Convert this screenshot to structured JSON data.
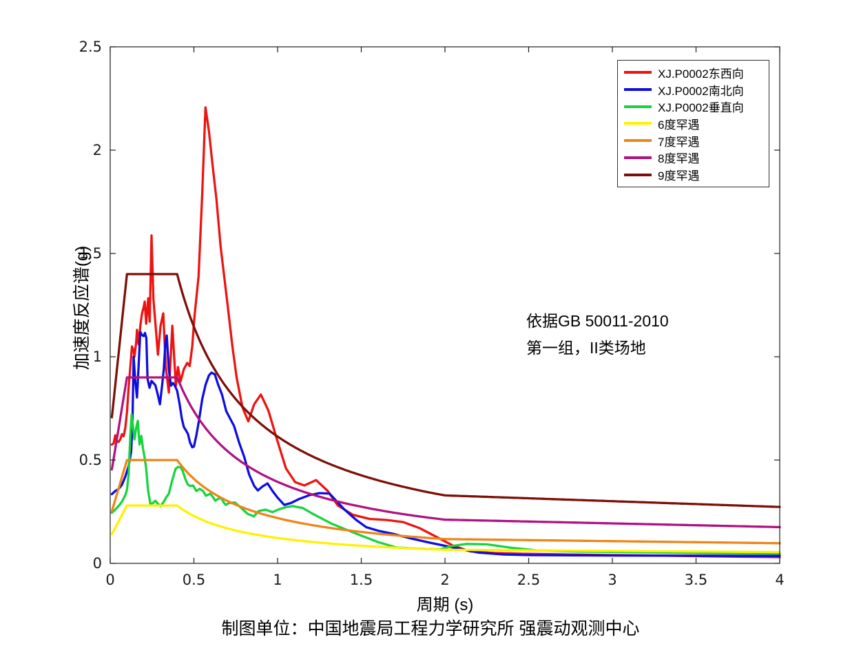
{
  "chart_data": {
    "type": "line",
    "title": "",
    "xlabel": "周期 (s)",
    "ylabel": "加速度反应谱(g)",
    "xlim": [
      0,
      4
    ],
    "ylim": [
      0,
      2.5
    ],
    "grid": false,
    "legend_position": "top-right",
    "axis_color": "#1a1a1a",
    "tick_label_color": "#1a1a1a",
    "x_ticks": {
      "values": [
        0,
        0.5,
        1,
        1.5,
        2,
        2.5,
        3,
        3.5,
        4
      ],
      "labels": [
        "0",
        "0.5",
        "1",
        "1.5",
        "2",
        "2.5",
        "3",
        "3.5",
        "4"
      ]
    },
    "y_ticks": {
      "values": [
        0,
        0.5,
        1,
        1.5,
        2,
        2.5
      ],
      "labels": [
        "0",
        "0.5",
        "1",
        "1.5",
        "2",
        "2.5"
      ]
    },
    "recorded_series": [
      {
        "name": "XJ.P0002东西向",
        "color": "#ed1310",
        "points": [
          [
            0.01,
            0.575
          ],
          [
            0.02,
            0.58
          ],
          [
            0.03,
            0.62
          ],
          [
            0.04,
            0.59
          ],
          [
            0.05,
            0.588
          ],
          [
            0.06,
            0.6
          ],
          [
            0.07,
            0.625
          ],
          [
            0.08,
            0.615
          ],
          [
            0.09,
            0.655
          ],
          [
            0.1,
            0.73
          ],
          [
            0.11,
            0.85
          ],
          [
            0.12,
            0.95
          ],
          [
            0.13,
            1.05
          ],
          [
            0.14,
            1.03
          ],
          [
            0.145,
            1.0
          ],
          [
            0.155,
            1.07
          ],
          [
            0.16,
            1.13
          ],
          [
            0.17,
            1.06
          ],
          [
            0.18,
            1.15
          ],
          [
            0.19,
            1.21
          ],
          [
            0.2,
            1.24
          ],
          [
            0.206,
            1.267
          ],
          [
            0.215,
            1.16
          ],
          [
            0.227,
            1.283
          ],
          [
            0.236,
            1.17
          ],
          [
            0.247,
            1.587
          ],
          [
            0.258,
            1.28
          ],
          [
            0.268,
            1.183
          ],
          [
            0.285,
            1.01
          ],
          [
            0.301,
            1.15
          ],
          [
            0.317,
            1.21
          ],
          [
            0.332,
            0.95
          ],
          [
            0.35,
            0.827
          ],
          [
            0.371,
            1.15
          ],
          [
            0.392,
            0.86
          ],
          [
            0.405,
            0.95
          ],
          [
            0.42,
            0.88
          ],
          [
            0.44,
            0.94
          ],
          [
            0.46,
            0.97
          ],
          [
            0.475,
            0.955
          ],
          [
            0.49,
            1.05
          ],
          [
            0.503,
            1.19
          ],
          [
            0.528,
            1.39
          ],
          [
            0.55,
            1.79
          ],
          [
            0.569,
            2.207
          ],
          [
            0.59,
            2.09
          ],
          [
            0.61,
            1.94
          ],
          [
            0.635,
            1.76
          ],
          [
            0.66,
            1.53
          ],
          [
            0.7,
            1.26
          ],
          [
            0.73,
            1.05
          ],
          [
            0.755,
            0.9
          ],
          [
            0.79,
            0.755
          ],
          [
            0.825,
            0.687
          ],
          [
            0.86,
            0.77
          ],
          [
            0.9,
            0.817
          ],
          [
            0.945,
            0.74
          ],
          [
            1.0,
            0.59
          ],
          [
            1.05,
            0.46
          ],
          [
            1.105,
            0.393
          ],
          [
            1.16,
            0.377
          ],
          [
            1.23,
            0.403
          ],
          [
            1.3,
            0.35
          ],
          [
            1.36,
            0.28
          ],
          [
            1.45,
            0.235
          ],
          [
            1.55,
            0.215
          ],
          [
            1.65,
            0.21
          ],
          [
            1.75,
            0.2
          ],
          [
            1.85,
            0.17
          ],
          [
            1.95,
            0.128
          ],
          [
            2.05,
            0.085
          ],
          [
            2.15,
            0.058
          ],
          [
            2.3,
            0.05
          ],
          [
            2.5,
            0.046
          ],
          [
            2.75,
            0.043
          ],
          [
            3.0,
            0.04
          ],
          [
            3.25,
            0.038
          ],
          [
            3.5,
            0.035
          ],
          [
            3.75,
            0.032
          ],
          [
            4.0,
            0.03
          ]
        ]
      },
      {
        "name": "XJ.P0002南北向",
        "color": "#0d0de0",
        "points": [
          [
            0.01,
            0.335
          ],
          [
            0.03,
            0.35
          ],
          [
            0.05,
            0.36
          ],
          [
            0.07,
            0.38
          ],
          [
            0.09,
            0.42
          ],
          [
            0.11,
            0.47
          ],
          [
            0.125,
            0.54
          ],
          [
            0.133,
            0.68
          ],
          [
            0.14,
            1.0
          ],
          [
            0.15,
            0.88
          ],
          [
            0.16,
            0.803
          ],
          [
            0.17,
            0.96
          ],
          [
            0.18,
            1.12
          ],
          [
            0.19,
            1.105
          ],
          [
            0.2,
            1.1
          ],
          [
            0.208,
            1.115
          ],
          [
            0.216,
            1.09
          ],
          [
            0.223,
            0.893
          ],
          [
            0.235,
            0.85
          ],
          [
            0.247,
            0.883
          ],
          [
            0.258,
            0.873
          ],
          [
            0.27,
            0.862
          ],
          [
            0.283,
            0.82
          ],
          [
            0.297,
            0.77
          ],
          [
            0.31,
            0.86
          ],
          [
            0.32,
            0.94
          ],
          [
            0.33,
            1.07
          ],
          [
            0.338,
            1.103
          ],
          [
            0.35,
            0.94
          ],
          [
            0.363,
            0.86
          ],
          [
            0.375,
            0.873
          ],
          [
            0.385,
            0.862
          ],
          [
            0.4,
            0.835
          ],
          [
            0.415,
            0.77
          ],
          [
            0.428,
            0.7
          ],
          [
            0.44,
            0.66
          ],
          [
            0.455,
            0.64
          ],
          [
            0.465,
            0.625
          ],
          [
            0.477,
            0.585
          ],
          [
            0.49,
            0.562
          ],
          [
            0.5,
            0.565
          ],
          [
            0.515,
            0.62
          ],
          [
            0.53,
            0.69
          ],
          [
            0.55,
            0.795
          ],
          [
            0.57,
            0.865
          ],
          [
            0.59,
            0.91
          ],
          [
            0.605,
            0.923
          ],
          [
            0.625,
            0.915
          ],
          [
            0.645,
            0.865
          ],
          [
            0.668,
            0.817
          ],
          [
            0.693,
            0.737
          ],
          [
            0.72,
            0.695
          ],
          [
            0.74,
            0.665
          ],
          [
            0.77,
            0.585
          ],
          [
            0.8,
            0.517
          ],
          [
            0.83,
            0.43
          ],
          [
            0.86,
            0.375
          ],
          [
            0.882,
            0.353
          ],
          [
            0.91,
            0.372
          ],
          [
            0.94,
            0.387
          ],
          [
            0.97,
            0.35
          ],
          [
            1.0,
            0.318
          ],
          [
            1.04,
            0.283
          ],
          [
            1.08,
            0.292
          ],
          [
            1.13,
            0.312
          ],
          [
            1.19,
            0.33
          ],
          [
            1.25,
            0.34
          ],
          [
            1.31,
            0.338
          ],
          [
            1.4,
            0.26
          ],
          [
            1.47,
            0.21
          ],
          [
            1.53,
            0.175
          ],
          [
            1.6,
            0.158
          ],
          [
            1.69,
            0.143
          ],
          [
            1.8,
            0.12
          ],
          [
            1.91,
            0.1
          ],
          [
            2.0,
            0.085
          ],
          [
            2.1,
            0.068
          ],
          [
            2.2,
            0.052
          ],
          [
            2.35,
            0.043
          ],
          [
            2.5,
            0.04
          ],
          [
            2.75,
            0.039
          ],
          [
            3.0,
            0.038
          ],
          [
            3.5,
            0.037
          ],
          [
            4.0,
            0.036
          ]
        ]
      },
      {
        "name": "XJ.P0002垂直向",
        "color": "#17d43c",
        "points": [
          [
            0.01,
            0.245
          ],
          [
            0.03,
            0.26
          ],
          [
            0.05,
            0.278
          ],
          [
            0.07,
            0.298
          ],
          [
            0.09,
            0.33
          ],
          [
            0.1,
            0.355
          ],
          [
            0.11,
            0.43
          ],
          [
            0.12,
            0.62
          ],
          [
            0.128,
            0.72
          ],
          [
            0.138,
            0.65
          ],
          [
            0.145,
            0.6
          ],
          [
            0.155,
            0.655
          ],
          [
            0.165,
            0.69
          ],
          [
            0.175,
            0.575
          ],
          [
            0.186,
            0.617
          ],
          [
            0.196,
            0.555
          ],
          [
            0.205,
            0.515
          ],
          [
            0.215,
            0.46
          ],
          [
            0.226,
            0.355
          ],
          [
            0.24,
            0.287
          ],
          [
            0.255,
            0.292
          ],
          [
            0.27,
            0.303
          ],
          [
            0.285,
            0.288
          ],
          [
            0.3,
            0.277
          ],
          [
            0.32,
            0.298
          ],
          [
            0.335,
            0.32
          ],
          [
            0.35,
            0.337
          ],
          [
            0.37,
            0.4
          ],
          [
            0.39,
            0.457
          ],
          [
            0.405,
            0.467
          ],
          [
            0.42,
            0.465
          ],
          [
            0.433,
            0.448
          ],
          [
            0.448,
            0.41
          ],
          [
            0.462,
            0.383
          ],
          [
            0.478,
            0.374
          ],
          [
            0.495,
            0.377
          ],
          [
            0.515,
            0.35
          ],
          [
            0.535,
            0.361
          ],
          [
            0.555,
            0.35
          ],
          [
            0.572,
            0.327
          ],
          [
            0.598,
            0.337
          ],
          [
            0.615,
            0.32
          ],
          [
            0.627,
            0.303
          ],
          [
            0.645,
            0.312
          ],
          [
            0.662,
            0.317
          ],
          [
            0.678,
            0.295
          ],
          [
            0.69,
            0.283
          ],
          [
            0.705,
            0.29
          ],
          [
            0.72,
            0.293
          ],
          [
            0.745,
            0.295
          ],
          [
            0.78,
            0.27
          ],
          [
            0.82,
            0.24
          ],
          [
            0.858,
            0.227
          ],
          [
            0.887,
            0.253
          ],
          [
            0.928,
            0.26
          ],
          [
            0.969,
            0.248
          ],
          [
            1.01,
            0.262
          ],
          [
            1.05,
            0.272
          ],
          [
            1.09,
            0.277
          ],
          [
            1.15,
            0.268
          ],
          [
            1.21,
            0.24
          ],
          [
            1.32,
            0.193
          ],
          [
            1.45,
            0.15
          ],
          [
            1.6,
            0.103
          ],
          [
            1.71,
            0.077
          ],
          [
            1.8,
            0.073
          ],
          [
            1.88,
            0.07
          ],
          [
            1.97,
            0.068
          ],
          [
            2.05,
            0.085
          ],
          [
            2.13,
            0.094
          ],
          [
            2.25,
            0.092
          ],
          [
            2.4,
            0.075
          ],
          [
            2.55,
            0.063
          ],
          [
            2.8,
            0.057
          ],
          [
            3.0,
            0.055
          ],
          [
            3.5,
            0.05
          ],
          [
            4.0,
            0.047
          ]
        ]
      }
    ],
    "design_spectra": {
      "standard": "GB 50011-2010",
      "corner_periods_s": {
        "ramp_end": 0.1,
        "plateau_end": 0.4,
        "curve_end": 2.0
      },
      "ramp_start_factor": 0.45,
      "decay_exponent": 0.9,
      "linear_decay_slope": 0.02,
      "entries": [
        {
          "name": "6度罕遇",
          "alpha_max_g": 0.28,
          "color": "#fff100"
        },
        {
          "name": "7度罕遇",
          "alpha_max_g": 0.5,
          "color": "#ee8518"
        },
        {
          "name": "8度罕遇",
          "alpha_max_g": 0.9,
          "color": "#b1127f"
        },
        {
          "name": "9度罕遇",
          "alpha_max_g": 1.4,
          "color": "#7d0f08"
        }
      ]
    },
    "annotation": {
      "line1": "依据GB 50011-2010",
      "line2": "第一组，II类场地"
    },
    "caption": "制图单位：中国地震局工程力学研究所 强震动观测中心"
  }
}
